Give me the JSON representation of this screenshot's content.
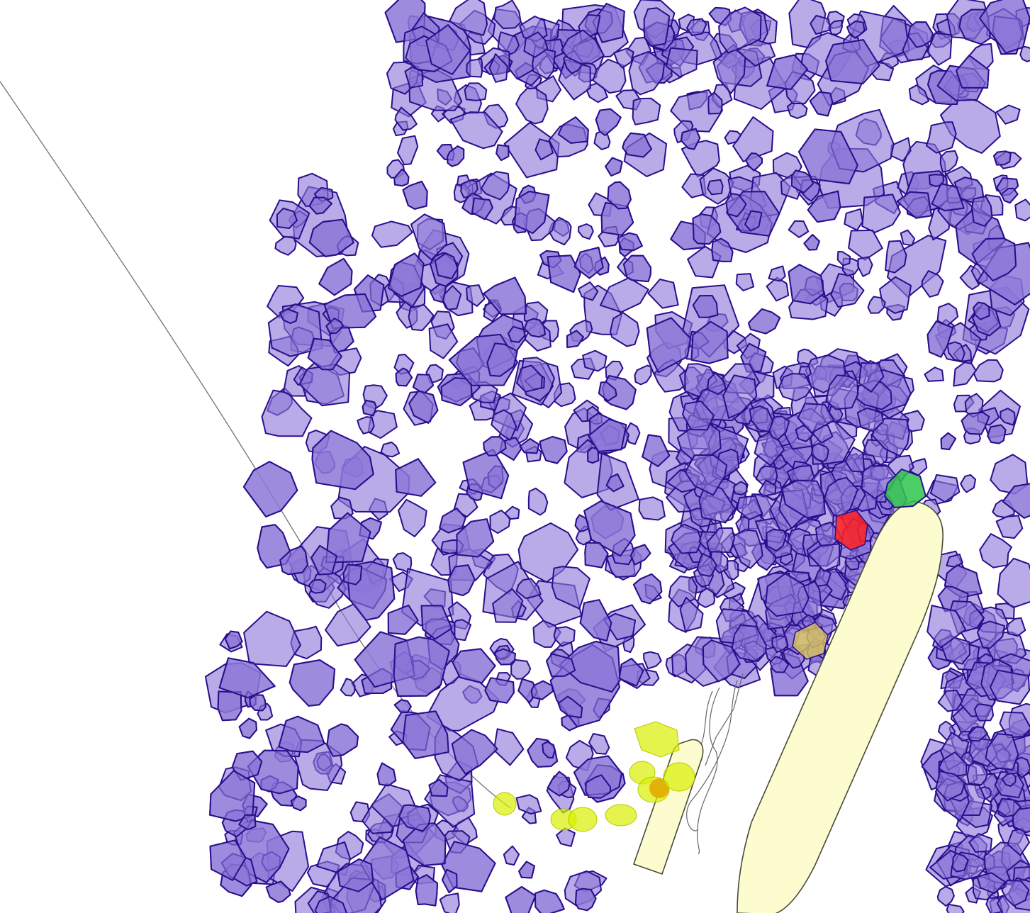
{
  "scene": {
    "background": "#ffffff",
    "ice_fill": "#8c78d8",
    "ice_stroke": "#2a0f8c",
    "ship_fill": "#fdfccf",
    "marker_colors": {
      "green": "#2ec44a",
      "red": "#ff2020",
      "yellow": "#d8f000",
      "tan": "#d9c45a"
    }
  }
}
